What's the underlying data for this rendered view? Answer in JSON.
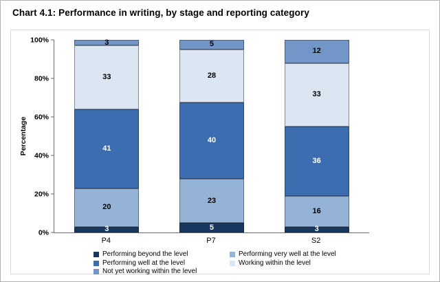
{
  "title": "Chart 4.1: Performance in writing, by stage and reporting category",
  "chart_data": {
    "type": "bar",
    "stacked": true,
    "title": "Chart 4.1: Performance in writing, by stage and reporting category",
    "categories": [
      "P4",
      "P7",
      "S2"
    ],
    "series": [
      {
        "name": "Performing beyond the level",
        "color": "#17375E",
        "label_color": "#FFFFFF",
        "values": [
          3,
          5,
          3
        ]
      },
      {
        "name": "Performing very well at the level",
        "color": "#95B3D7",
        "label_color": "#000000",
        "values": [
          20,
          23,
          16
        ]
      },
      {
        "name": "Performing well at the level",
        "color": "#3C6DB0",
        "label_color": "#FFFFFF",
        "values": [
          41,
          40,
          36
        ]
      },
      {
        "name": "Working within the level",
        "color": "#DCE6F2",
        "label_color": "#000000",
        "values": [
          33,
          28,
          33
        ]
      },
      {
        "name": "Not yet working within the level",
        "color": "#7396C9",
        "label_color": "#000000",
        "values": [
          3,
          5,
          12
        ]
      }
    ],
    "xlabel": "",
    "ylabel": "Percentage",
    "y_ticks": [
      "0%",
      "20%",
      "40%",
      "60%",
      "80%",
      "100%"
    ],
    "ylim": [
      0,
      100
    ],
    "grid": false,
    "legend_position": "bottom",
    "legend_columns": [
      [
        0,
        2,
        4
      ],
      [
        1,
        3
      ]
    ]
  }
}
